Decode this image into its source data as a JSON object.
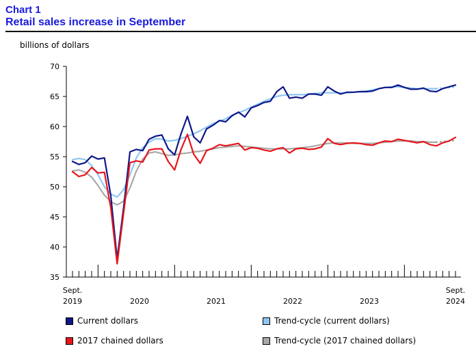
{
  "header": {
    "chart_number": "Chart 1",
    "title": "Retail sales increase in September"
  },
  "colors": {
    "current": "#0d1787",
    "trend_current": "#8ec6f2",
    "chained": "#e8151b",
    "trend_chained": "#a8a8a8",
    "title": "#1a1adb"
  },
  "chart_data": {
    "type": "line",
    "title": "Retail sales increase in September",
    "ylabel": "billions of dollars",
    "ylim": [
      35,
      70
    ],
    "yticks": [
      35,
      40,
      45,
      50,
      55,
      60,
      65,
      70
    ],
    "x_start": "2019-09",
    "x_end": "2024-09",
    "x_tick_labels": [
      {
        "line1": "Sept.",
        "line2": "2019"
      },
      {
        "line1": "",
        "line2": "2020"
      },
      {
        "line1": "",
        "line2": "2021"
      },
      {
        "line1": "",
        "line2": "2022"
      },
      {
        "line1": "",
        "line2": "2023"
      },
      {
        "line1": "Sept.",
        "line2": "2024"
      }
    ],
    "series": [
      {
        "name": "Current dollars",
        "values": [
          54.2,
          53.7,
          54.0,
          55.1,
          54.6,
          54.8,
          48.5,
          38.0,
          46.5,
          55.8,
          56.2,
          56.0,
          57.9,
          58.4,
          58.6,
          56.3,
          55.3,
          58.8,
          61.7,
          58.3,
          57.3,
          59.6,
          60.2,
          61.0,
          60.8,
          61.8,
          62.4,
          61.6,
          63.1,
          63.5,
          64.0,
          64.2,
          65.8,
          66.6,
          64.7,
          64.9,
          64.7,
          65.4,
          65.4,
          65.2,
          66.6,
          65.9,
          65.4,
          65.7,
          65.7,
          65.8,
          65.8,
          65.9,
          66.3,
          66.5,
          66.5,
          66.9,
          66.5,
          66.2,
          66.2,
          66.4,
          65.9,
          65.8,
          66.3,
          66.6,
          66.9
        ]
      },
      {
        "name": "Trend-cycle (current dollars)",
        "values": [
          54.5,
          54.7,
          54.5,
          53.5,
          52.0,
          50.0,
          48.8,
          48.3,
          49.5,
          52.0,
          54.8,
          56.5,
          57.4,
          58.0,
          57.9,
          57.6,
          57.7,
          58.0,
          58.4,
          58.8,
          59.3,
          59.9,
          60.5,
          60.9,
          61.3,
          61.9,
          62.3,
          62.7,
          63.2,
          63.7,
          64.2,
          64.6,
          65.0,
          65.2,
          65.3,
          65.3,
          65.3,
          65.4,
          65.5,
          65.6,
          65.6,
          65.6,
          65.6,
          65.6,
          65.7,
          65.8,
          65.9,
          66.1,
          66.3,
          66.5,
          66.6,
          66.6,
          66.5,
          66.4,
          66.3,
          66.3,
          66.3,
          66.3,
          66.4,
          66.5,
          66.6
        ]
      },
      {
        "name": "2017 chained dollars",
        "values": [
          52.5,
          51.7,
          52.0,
          53.2,
          52.3,
          52.4,
          46.5,
          37.2,
          45.6,
          54.0,
          54.3,
          54.1,
          56.1,
          56.3,
          56.3,
          54.2,
          52.8,
          56.2,
          58.7,
          55.4,
          53.9,
          56.0,
          56.4,
          57.0,
          56.8,
          57.0,
          57.2,
          56.1,
          56.5,
          56.4,
          56.1,
          55.9,
          56.3,
          56.5,
          55.6,
          56.3,
          56.4,
          56.2,
          56.3,
          56.6,
          58.0,
          57.2,
          57.0,
          57.2,
          57.3,
          57.2,
          57.0,
          56.9,
          57.3,
          57.6,
          57.5,
          57.9,
          57.7,
          57.5,
          57.3,
          57.5,
          57.0,
          56.8,
          57.3,
          57.6,
          58.2
        ]
      },
      {
        "name": "Trend-cycle (2017 chained dollars)",
        "values": [
          52.6,
          52.8,
          52.4,
          51.6,
          50.2,
          48.6,
          47.5,
          47.0,
          47.6,
          49.8,
          52.6,
          54.6,
          55.6,
          55.8,
          55.5,
          55.2,
          55.3,
          55.5,
          55.6,
          55.8,
          55.9,
          56.1,
          56.3,
          56.5,
          56.6,
          56.7,
          56.8,
          56.7,
          56.6,
          56.5,
          56.4,
          56.3,
          56.3,
          56.3,
          56.3,
          56.4,
          56.5,
          56.6,
          56.8,
          57.0,
          57.2,
          57.3,
          57.3,
          57.3,
          57.2,
          57.2,
          57.2,
          57.2,
          57.3,
          57.4,
          57.5,
          57.6,
          57.6,
          57.6,
          57.5,
          57.5,
          57.4,
          57.4,
          57.5,
          57.6,
          57.7
        ]
      }
    ],
    "legend_position": "bottom",
    "grid": false
  }
}
